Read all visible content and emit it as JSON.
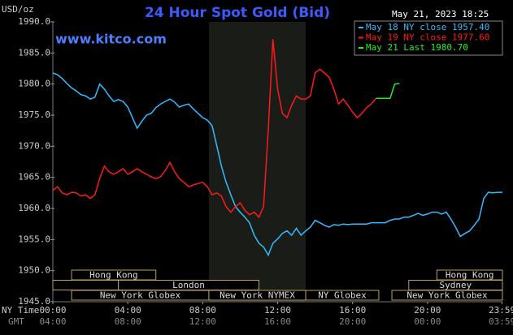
{
  "chart_data": {
    "type": "line",
    "title": "24 Hour Spot Gold (Bid)",
    "subtitle": "www.kitco.com",
    "timestamp": "May 21, 2023 18:25",
    "y_label": "USD/oz",
    "x_label": "NY Time",
    "x2_label": "GMT",
    "ylim": [
      1945,
      1990
    ],
    "yticks": [
      {
        "value": 1945,
        "label": "1945.0"
      },
      {
        "value": 1950,
        "label": "1950.0"
      },
      {
        "value": 1955,
        "label": "1955.0"
      },
      {
        "value": 1960,
        "label": "1960.0"
      },
      {
        "value": 1965,
        "label": "1965.0"
      },
      {
        "value": 1970,
        "label": "1970.0"
      },
      {
        "value": 1975,
        "label": "1975.0"
      },
      {
        "value": 1980,
        "label": "1980.0"
      },
      {
        "value": 1985,
        "label": "1985.0"
      },
      {
        "value": 1990,
        "label": "1990.0"
      }
    ],
    "xlim": [
      0,
      24
    ],
    "xticks": [
      {
        "value": 0,
        "label": "00:00"
      },
      {
        "value": 4,
        "label": "04:00"
      },
      {
        "value": 8,
        "label": "08:00"
      },
      {
        "value": 12,
        "label": "12:00"
      },
      {
        "value": 16,
        "label": "16:00"
      },
      {
        "value": 20,
        "label": "20:00"
      },
      {
        "value": 23.98,
        "label": "23:59"
      }
    ],
    "x2ticks": [
      {
        "value": 0,
        "label": "04:00"
      },
      {
        "value": 4,
        "label": "08:00"
      },
      {
        "value": 8,
        "label": "12:00"
      },
      {
        "value": 12,
        "label": "16:00"
      },
      {
        "value": 16,
        "label": "20:00"
      },
      {
        "value": 20,
        "label": "00:00"
      },
      {
        "value": 23.98,
        "label": "03:59"
      }
    ],
    "grid": false,
    "legend": "top-right",
    "highlight": {
      "start": 8.33,
      "end": 13.5,
      "color": "#1a1c18"
    },
    "sessions": [
      [
        {
          "label": "Hong Kong",
          "start": 1,
          "end": 5.5
        },
        {
          "label": "Hong Kong",
          "start": 20.5,
          "end": 24
        }
      ],
      [
        {
          "start": 0,
          "end": 3.5
        },
        {
          "label": "London",
          "start": 3.5,
          "end": 11
        },
        {
          "label": "Sydney",
          "start": 19,
          "end": 24
        }
      ],
      [
        {
          "label": "New York Globex",
          "start": 1,
          "end": 8.33
        },
        {
          "label": "New York NYMEX",
          "start": 8.33,
          "end": 13.5
        },
        {
          "label": "NY Globex",
          "start": 13.5,
          "end": 17.4
        },
        {
          "label": "New York Globex",
          "start": 18.1,
          "end": 24
        }
      ]
    ],
    "x": [
      0,
      0.25,
      0.5,
      0.75,
      1,
      1.25,
      1.5,
      1.75,
      2,
      2.25,
      2.5,
      2.75,
      3,
      3.25,
      3.5,
      3.75,
      4,
      4.25,
      4.5,
      4.75,
      5,
      5.25,
      5.5,
      5.75,
      6,
      6.25,
      6.5,
      6.75,
      7,
      7.25,
      7.5,
      7.75,
      8,
      8.25,
      8.5,
      8.75,
      9,
      9.25,
      9.5,
      9.75,
      10,
      10.25,
      10.5,
      10.75,
      11,
      11.25,
      11.5,
      11.75,
      12,
      12.25,
      12.5,
      12.75,
      13,
      13.25,
      13.5,
      13.75,
      14,
      14.25,
      14.5,
      14.75,
      15,
      15.25,
      15.5,
      15.75,
      16,
      16.25,
      16.5,
      16.75,
      17,
      17.25,
      17.5,
      17.75,
      18,
      18.25,
      18.5,
      18.75,
      19,
      19.25,
      19.5,
      19.75,
      20,
      20.25,
      20.5,
      20.75,
      21,
      21.25,
      21.5,
      21.75,
      22,
      22.25,
      22.5,
      22.75,
      23,
      23.25,
      23.5,
      23.75,
      24
    ],
    "series": [
      {
        "name": "May 18 NY close 1957.40",
        "color": "#33bbff",
        "values": [
          1981.8,
          1981.5,
          1980.9,
          1980.1,
          1979.4,
          1978.9,
          1978.3,
          1978.1,
          1977.6,
          1977.9,
          1980.0,
          1979.2,
          1978.1,
          1977.2,
          1977.5,
          1977.2,
          1976.3,
          1974.6,
          1972.9,
          1974.0,
          1975.0,
          1975.3,
          1976.2,
          1976.8,
          1977.2,
          1977.6,
          1977.1,
          1976.3,
          1976.6,
          1976.8,
          1976.0,
          1975.3,
          1974.6,
          1974.2,
          1973.3,
          1970.1,
          1966.8,
          1964.2,
          1962.2,
          1960.3,
          1959.4,
          1958.6,
          1957.7,
          1955.7,
          1954.4,
          1953.8,
          1952.5,
          1954.4,
          1955.1,
          1956.0,
          1956.4,
          1955.7,
          1956.8,
          1955.7,
          1956.4,
          1957.0,
          1958.1,
          1957.7,
          1957.3,
          1957.0,
          1957.4,
          1957.3,
          1957.5,
          1957.4,
          1957.5,
          1957.5,
          1957.5,
          1957.5,
          1957.7,
          1957.7,
          1957.7,
          1957.7,
          1958.1,
          1958.3,
          1958.3,
          1958.6,
          1958.6,
          1958.9,
          1959.2,
          1958.9,
          1959.1,
          1959.4,
          1959.4,
          1959.1,
          1959.4,
          1958.3,
          1957.0,
          1955.5,
          1956.0,
          1956.4,
          1957.3,
          1958.3,
          1961.6,
          1962.6,
          1962.5,
          1962.6,
          1962.6
        ]
      },
      {
        "name": "May 19 NY close 1977.60",
        "color": "#ff1a1a",
        "values": [
          1962.9,
          1963.5,
          1962.5,
          1962.2,
          1962.6,
          1962.5,
          1962.0,
          1962.2,
          1961.6,
          1962.2,
          1964.8,
          1966.8,
          1965.9,
          1965.5,
          1965.9,
          1966.4,
          1965.5,
          1965.9,
          1966.4,
          1965.9,
          1965.5,
          1965.1,
          1964.8,
          1965.1,
          1966.1,
          1967.4,
          1965.9,
          1964.8,
          1964.2,
          1963.5,
          1963.8,
          1964.0,
          1964.2,
          1963.5,
          1962.2,
          1962.5,
          1962.0,
          1960.3,
          1959.4,
          1960.3,
          1960.9,
          1959.7,
          1959.0,
          1959.4,
          1958.6,
          1960.3,
          1972.7,
          1987.2,
          1979.2,
          1975.3,
          1974.6,
          1976.6,
          1978.1,
          1977.6,
          1977.6,
          1978.1,
          1981.8,
          1982.4,
          1981.8,
          1981.1,
          1979.2,
          1976.8,
          1977.6,
          1976.6,
          1975.5,
          1974.6,
          1975.3,
          1976.2,
          1976.8,
          1977.7,
          null,
          null,
          null,
          null,
          null,
          null,
          null,
          null,
          null,
          null,
          null,
          null,
          null,
          null,
          null,
          null,
          null,
          null,
          null,
          null,
          null,
          null,
          null,
          null,
          null,
          null,
          null
        ]
      },
      {
        "name": "May 21 Last 1980.70",
        "color": "#22ee22",
        "values": [
          null,
          null,
          null,
          null,
          null,
          null,
          null,
          null,
          null,
          null,
          null,
          null,
          null,
          null,
          null,
          null,
          null,
          null,
          null,
          null,
          null,
          null,
          null,
          null,
          null,
          null,
          null,
          null,
          null,
          null,
          null,
          null,
          null,
          null,
          null,
          null,
          null,
          null,
          null,
          null,
          null,
          null,
          null,
          null,
          null,
          null,
          null,
          null,
          null,
          null,
          null,
          null,
          null,
          null,
          null,
          null,
          null,
          null,
          null,
          null,
          null,
          null,
          null,
          null,
          null,
          null,
          null,
          null,
          null,
          1977.7,
          1977.7,
          1977.7,
          1977.7,
          1980.0,
          1980.1,
          null,
          null,
          null,
          null,
          null,
          null,
          null,
          null,
          null,
          null,
          null,
          null,
          null,
          null,
          null,
          null,
          null,
          null,
          null,
          null,
          null,
          null
        ]
      }
    ]
  }
}
